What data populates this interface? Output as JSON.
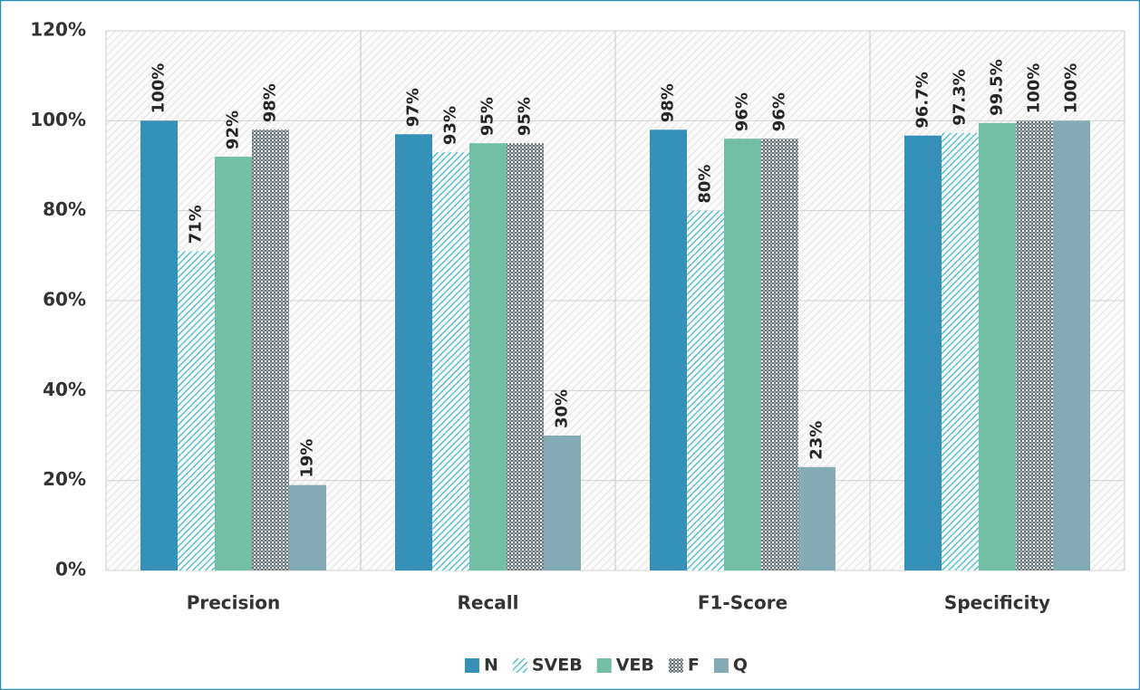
{
  "chart_data": {
    "type": "bar",
    "categories": [
      "Precision",
      "Recall",
      "F1-Score",
      "Specificity"
    ],
    "series": [
      {
        "name": "N",
        "color": "#3591b8",
        "values": [
          100,
          97,
          98,
          96.7
        ],
        "value_labels": [
          "100%",
          "97%",
          "98%",
          "96.7%"
        ]
      },
      {
        "name": "SVEB",
        "color": "#5bbfd3",
        "pattern": "hatch",
        "values": [
          71,
          93,
          80,
          97.3
        ],
        "value_labels": [
          "71%",
          "93%",
          "80%",
          "97.3%"
        ]
      },
      {
        "name": "VEB",
        "color": "#73bfa6",
        "values": [
          92,
          95,
          96,
          99.5
        ],
        "value_labels": [
          "92%",
          "95%",
          "96%",
          "99.5%"
        ]
      },
      {
        "name": "F",
        "color": "#66757a",
        "pattern": "check",
        "values": [
          98,
          95,
          96,
          100
        ],
        "value_labels": [
          "98%",
          "95%",
          "96%",
          "100%"
        ]
      },
      {
        "name": "Q",
        "color": "#84aab4",
        "values": [
          19,
          30,
          23,
          100
        ],
        "value_labels": [
          "19%",
          "30%",
          "23%",
          "100%"
        ]
      }
    ],
    "ylim": [
      0,
      120
    ],
    "yticks": [
      {
        "value": 0,
        "label": "0%"
      },
      {
        "value": 20,
        "label": "20%"
      },
      {
        "value": 40,
        "label": "40%"
      },
      {
        "value": 60,
        "label": "60%"
      },
      {
        "value": 80,
        "label": "80%"
      },
      {
        "value": 100,
        "label": "100%"
      },
      {
        "value": 120,
        "label": "120%"
      }
    ],
    "grid": true,
    "legend": "bottom"
  }
}
